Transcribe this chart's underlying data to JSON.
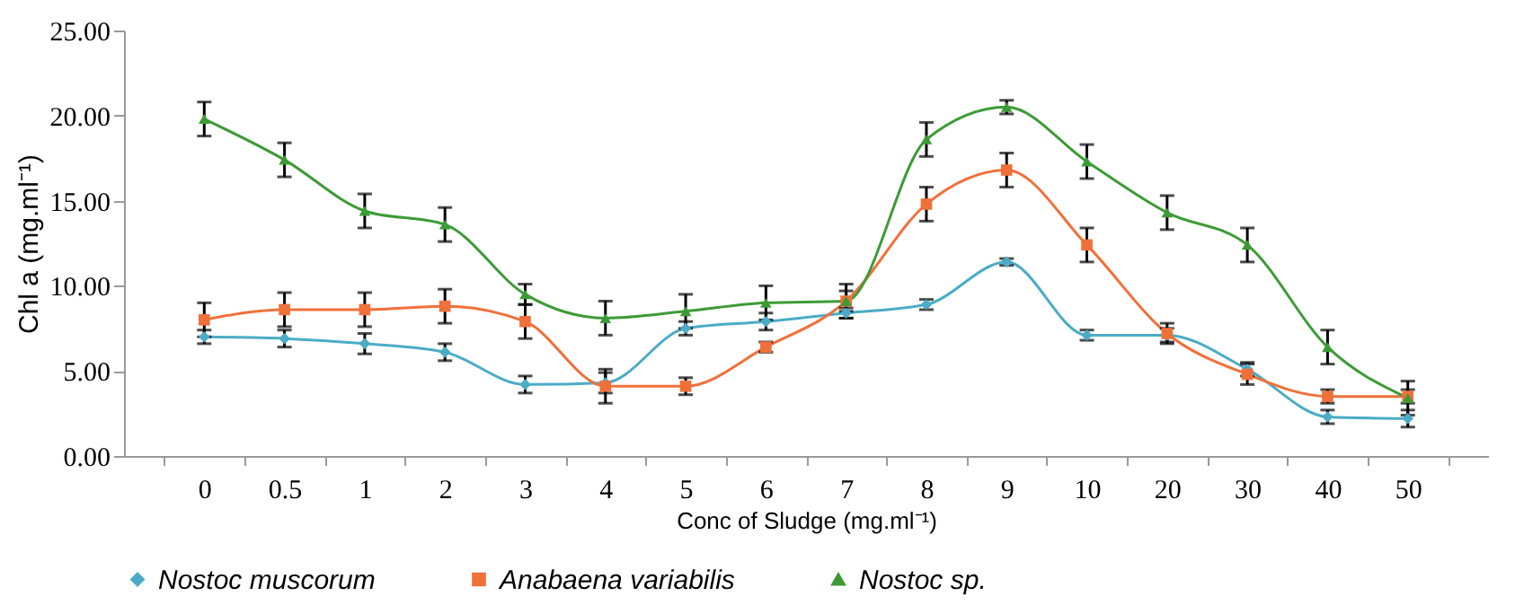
{
  "chart_data": {
    "type": "line",
    "xlabel": "Conc of Sludge (mg.ml⁻¹)",
    "ylabel": "Chl  a (mg.ml⁻¹)",
    "categories": [
      "0",
      "0.5",
      "1",
      "2",
      "3",
      "4",
      "5",
      "6",
      "7",
      "8",
      "9",
      "10",
      "20",
      "30",
      "40",
      "50"
    ],
    "ylim": [
      0,
      25
    ],
    "yticks": [
      {
        "value": 0,
        "label": "0.00"
      },
      {
        "value": 5,
        "label": "5.00"
      },
      {
        "value": 10,
        "label": "10.00"
      },
      {
        "value": 15,
        "label": "15.00"
      },
      {
        "value": 20,
        "label": "20.00"
      },
      {
        "value": 25,
        "label": "25.00"
      }
    ],
    "grid": false,
    "legend": "bottom",
    "series": [
      {
        "name": "Nostoc muscorum",
        "color": "#4bacc6",
        "marker": "diamond",
        "values": [
          7.0,
          6.9,
          6.6,
          6.1,
          4.2,
          4.3,
          7.5,
          7.9,
          8.4,
          8.9,
          11.4,
          7.1,
          7.1,
          5.1,
          2.3,
          2.2
        ],
        "errors": [
          0.4,
          0.5,
          0.6,
          0.5,
          0.5,
          0.6,
          0.4,
          0.5,
          0.3,
          0.3,
          0.2,
          0.3,
          0.4,
          0.4,
          0.4,
          0.5
        ]
      },
      {
        "name": "Anabaena variabilis",
        "color": "#f0703a",
        "marker": "square",
        "values": [
          8.0,
          8.6,
          8.6,
          8.8,
          7.9,
          4.1,
          4.1,
          6.4,
          9.1,
          14.8,
          16.8,
          12.4,
          7.2,
          4.8,
          3.5,
          3.5
        ],
        "errors": [
          1.0,
          1.0,
          1.0,
          1.0,
          1.0,
          1.0,
          0.5,
          0.3,
          0.6,
          1.0,
          1.0,
          1.0,
          0.6,
          0.6,
          0.4,
          0.4
        ]
      },
      {
        "name": "Nostoc sp.",
        "color": "#3d9b35",
        "marker": "triangle",
        "values": [
          19.8,
          17.4,
          14.4,
          13.6,
          9.5,
          8.1,
          8.5,
          9.0,
          9.1,
          18.6,
          20.5,
          17.3,
          14.3,
          12.4,
          6.4,
          3.4
        ],
        "errors": [
          1.0,
          1.0,
          1.0,
          1.0,
          0.6,
          1.0,
          1.0,
          1.0,
          1.0,
          1.0,
          0.4,
          1.0,
          1.0,
          1.0,
          1.0,
          1.0
        ]
      }
    ]
  }
}
